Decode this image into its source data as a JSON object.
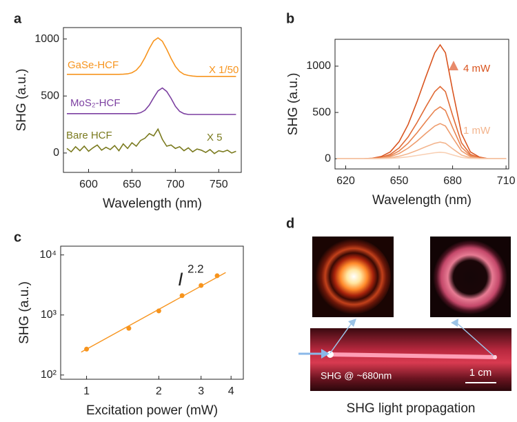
{
  "chart_data": [
    {
      "type": "line",
      "label": "a",
      "xlabel": "Wavelength (nm)",
      "ylabel": "SHG (a.u.)",
      "xlim": [
        571,
        776
      ],
      "ylim": [
        -170,
        1100
      ],
      "xticks": [
        600,
        650,
        700,
        750
      ],
      "yticks": [
        0,
        500,
        1000
      ],
      "x": [
        575,
        580,
        585,
        590,
        595,
        600,
        605,
        610,
        615,
        620,
        625,
        630,
        635,
        640,
        645,
        650,
        655,
        660,
        665,
        670,
        675,
        680,
        685,
        690,
        695,
        700,
        705,
        710,
        715,
        720,
        725,
        730,
        735,
        740,
        745,
        750,
        755,
        760,
        765,
        770
      ],
      "series": [
        {
          "name": "GaSe-HCF",
          "scale_label": "X 1/50",
          "color": "#f7941d",
          "values": [
            690,
            690,
            690,
            690,
            690,
            690,
            690,
            690,
            690,
            690,
            690,
            690,
            690,
            691,
            694,
            704,
            726,
            770,
            837,
            916,
            983,
            1010,
            980,
            910,
            830,
            760,
            715,
            690,
            680,
            675,
            672,
            672,
            672,
            672,
            672,
            672,
            672,
            672,
            672,
            672
          ]
        },
        {
          "name": "MoS₂-HCF",
          "color": "#7b3fa0",
          "values": [
            345,
            345,
            345,
            345,
            345,
            345,
            345,
            345,
            345,
            345,
            345,
            345,
            345,
            345,
            345,
            345,
            345,
            354,
            375,
            420,
            485,
            545,
            570,
            540,
            480,
            410,
            365,
            345,
            338,
            338,
            338,
            338,
            338,
            338,
            338,
            338,
            338,
            338,
            338,
            338
          ]
        },
        {
          "name": "Bare HCF",
          "scale_label": "X 5",
          "color": "#7a7a1e",
          "values": [
            40,
            10,
            55,
            20,
            60,
            15,
            45,
            70,
            25,
            50,
            30,
            65,
            20,
            80,
            40,
            90,
            60,
            110,
            130,
            170,
            150,
            210,
            120,
            60,
            70,
            40,
            55,
            20,
            45,
            10,
            35,
            25,
            5,
            30,
            -5,
            20,
            10,
            25,
            0,
            15
          ]
        }
      ]
    },
    {
      "type": "line",
      "label": "b",
      "xlabel": "Wavelength (nm)",
      "ylabel": "SHG (a.u.)",
      "xlim": [
        614,
        711.5
      ],
      "ylim": [
        -110,
        1290
      ],
      "xticks": [
        620,
        650,
        680,
        710
      ],
      "yticks": [
        0,
        500,
        1000
      ],
      "annotations": [
        "4 mW",
        "1 mW"
      ],
      "x": [
        615,
        620,
        625,
        630,
        635,
        640,
        645,
        650,
        655,
        660,
        665,
        670,
        673,
        676,
        680,
        685,
        690,
        695,
        700,
        705,
        710
      ],
      "series": [
        {
          "color": "#d9541f",
          "values": [
            0,
            0,
            0,
            0,
            6,
            25,
            74,
            185,
            369,
            615,
            886,
            1144,
            1230,
            1144,
            738,
            271,
            74,
            18,
            0,
            0,
            0
          ]
        },
        {
          "color": "#e06a35",
          "values": [
            0,
            0,
            0,
            0,
            4,
            16,
            47,
            117,
            234,
            390,
            562,
            725,
            780,
            725,
            468,
            172,
            47,
            12,
            0,
            0,
            0
          ]
        },
        {
          "color": "#e8834f",
          "values": [
            0,
            0,
            0,
            0,
            3,
            11,
            34,
            84,
            168,
            280,
            403,
            521,
            560,
            521,
            336,
            123,
            34,
            8,
            0,
            0,
            0
          ]
        },
        {
          "color": "#ee9c6d",
          "values": [
            0,
            0,
            0,
            0,
            2,
            8,
            23,
            57,
            114,
            190,
            274,
            353,
            380,
            353,
            228,
            84,
            23,
            6,
            0,
            0,
            0
          ]
        },
        {
          "color": "#f3b58e",
          "values": [
            0,
            0,
            0,
            0,
            1,
            4,
            11,
            27,
            54,
            90,
            130,
            167,
            180,
            167,
            108,
            40,
            11,
            3,
            0,
            0,
            0
          ]
        },
        {
          "color": "#f8cfb3",
          "values": [
            0,
            0,
            0,
            0,
            0,
            1,
            4,
            11,
            21,
            35,
            50,
            65,
            70,
            65,
            42,
            15,
            4,
            1,
            0,
            0,
            0
          ]
        }
      ]
    },
    {
      "type": "scatter",
      "label": "c",
      "xlabel": "Excitation power (mW)",
      "ylabel": "SHG  (a.u.)",
      "xlog": true,
      "ylog": true,
      "xlim": [
        0.78,
        4.5
      ],
      "ylim": [
        85,
        14000
      ],
      "xticks": [
        1,
        2,
        3,
        4
      ],
      "yticks": [
        {
          "value": 100,
          "label": "10²"
        },
        {
          "value": 1000,
          "label": "10³"
        },
        {
          "value": 10000,
          "label": "10⁴"
        }
      ],
      "fit_label": {
        "base": "I",
        "exponent": "2.2"
      },
      "points": {
        "color": "#f7941d",
        "x": [
          1,
          1.5,
          2,
          2.5,
          3,
          3.5
        ],
        "y": [
          270,
          600,
          1170,
          2100,
          3100,
          4500
        ]
      },
      "fit": {
        "color": "#f7941d",
        "x": [
          0.95,
          3.8
        ],
        "y": [
          241,
          5100
        ]
      }
    }
  ],
  "panel_d": {
    "label": "d",
    "annotation": "SHG @ ~680nm",
    "scale_bar": "1 cm",
    "caption": "SHG light propagation"
  }
}
